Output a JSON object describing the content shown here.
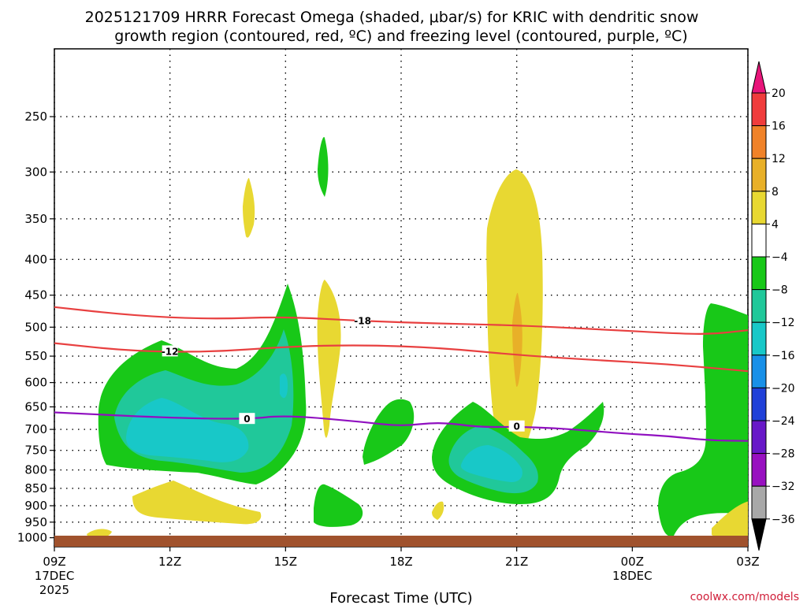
{
  "chart_data": {
    "type": "contour",
    "title": "2025121709 HRRR Forecast Omega (shaded, μbar/s) for KRIC with dendritic snow",
    "subtitle": "growth region (contoured, red, ºC) and freezing level (contoured, purple, ºC)",
    "xlabel": "Forecast Time (UTC)",
    "ylabel": "",
    "x_ticks": [
      {
        "label": "09Z",
        "hour": 0,
        "sub1": "17DEC",
        "sub2": "2025"
      },
      {
        "label": "12Z",
        "hour": 3
      },
      {
        "label": "15Z",
        "hour": 6
      },
      {
        "label": "18Z",
        "hour": 9
      },
      {
        "label": "21Z",
        "hour": 12
      },
      {
        "label": "00Z",
        "hour": 15,
        "sub1": "18DEC"
      },
      {
        "label": "03Z",
        "hour": 18
      }
    ],
    "xlim_hours": [
      0,
      18
    ],
    "y_ticks": [
      "250",
      "300",
      "350",
      "400",
      "450",
      "500",
      "550",
      "600",
      "650",
      "700",
      "750",
      "800",
      "850",
      "900",
      "950",
      "1000"
    ],
    "ylim_hpa": [
      200,
      1030
    ],
    "colorbar": {
      "labels": [
        "20",
        "16",
        "12",
        "8",
        "4",
        "−4",
        "−8",
        "−12",
        "−16",
        "−20",
        "−24",
        "−28",
        "−32",
        "−36"
      ],
      "colors": [
        "#e8157a",
        "#f03c3c",
        "#f08228",
        "#e8b028",
        "#e8d832",
        "#ffffff",
        "#18c818",
        "#20c89a",
        "#18c8c8",
        "#1890e8",
        "#2040d8",
        "#6818c8",
        "#9810c0",
        "#a8a8a8",
        "#000000"
      ]
    },
    "contours": [
      {
        "name": "freezing-level",
        "label": "0",
        "color": "#9010c0",
        "points": [
          [
            0,
            662
          ],
          [
            3,
            674
          ],
          [
            5,
            677
          ],
          [
            6,
            668
          ],
          [
            8,
            683
          ],
          [
            9,
            693
          ],
          [
            10,
            683
          ],
          [
            11,
            695
          ],
          [
            12,
            694
          ],
          [
            13,
            697
          ],
          [
            14,
            704
          ],
          [
            15,
            711
          ],
          [
            16,
            716
          ],
          [
            17,
            726
          ],
          [
            18,
            727
          ]
        ]
      },
      {
        "name": "dgz-top",
        "label": "-18",
        "color": "#e84040",
        "points": [
          [
            0,
            468
          ],
          [
            2,
            481
          ],
          [
            4,
            487
          ],
          [
            6,
            483
          ],
          [
            8,
            490
          ],
          [
            10,
            494
          ],
          [
            12,
            497
          ],
          [
            14,
            503
          ],
          [
            16,
            510
          ],
          [
            17,
            512
          ],
          [
            18,
            505
          ]
        ]
      },
      {
        "name": "dgz-bottom",
        "label": "-12",
        "color": "#e84040",
        "points": [
          [
            0,
            527
          ],
          [
            2,
            541
          ],
          [
            4,
            543
          ],
          [
            6,
            533
          ],
          [
            8,
            530
          ],
          [
            10,
            535
          ],
          [
            12,
            548
          ],
          [
            14,
            557
          ],
          [
            16,
            565
          ],
          [
            18,
            578
          ]
        ]
      }
    ]
  },
  "credit": "coolwx.com/models"
}
